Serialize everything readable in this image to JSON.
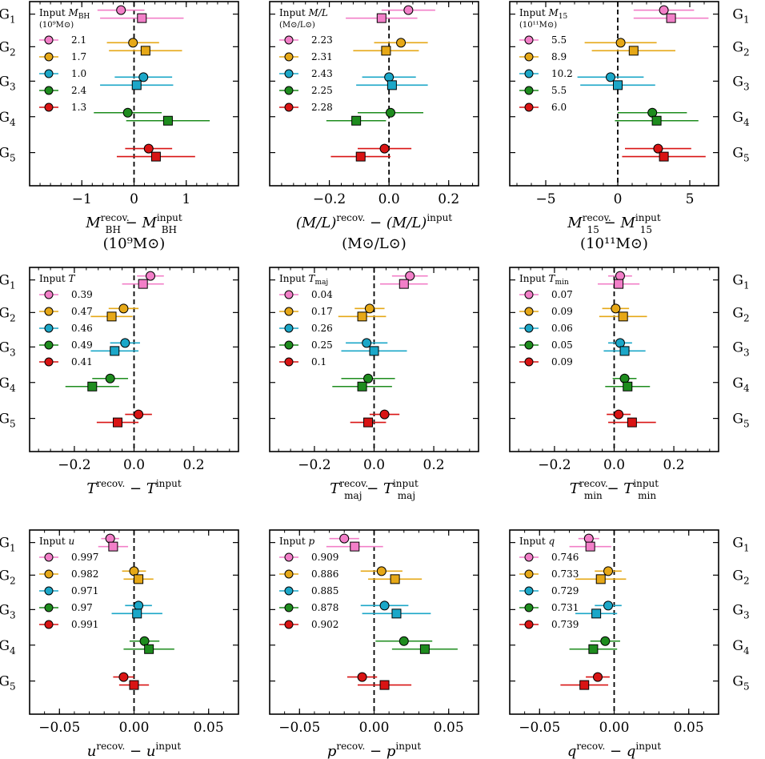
{
  "colors": {
    "G1": "#f27fc8",
    "G2": "#e6a817",
    "G3": "#1ba7c8",
    "G4": "#1e8c1e",
    "G5": "#d91414"
  },
  "group_labels": [
    "G",
    "G",
    "G",
    "G",
    "G"
  ],
  "group_subscripts": [
    "1",
    "2",
    "3",
    "4",
    "5"
  ],
  "chart_data": [
    {
      "type": "scatter",
      "id": "mbh",
      "xlim": [
        -2.0,
        2.0
      ],
      "xticks": [
        -1,
        0,
        1
      ],
      "xtick_labels": [
        "−1",
        "0",
        "1"
      ],
      "legend_title": "Input ",
      "legend_title_var": "M",
      "legend_title_sub": "BH",
      "legend_title_line2": "(10⁹M⊙)",
      "legend_values": [
        "2.1",
        "1.7",
        "1.0",
        "2.4",
        "1.3"
      ],
      "xlabel_line1": "M",
      "xlabel_line1_rest": "recov.",
      "xlabel_sub": "BH",
      "xlabel_minus": " − M",
      "xlabel_sup2": "input",
      "xlabel_sub2": "BH",
      "xlabel_line2": "(10⁹M⊙)",
      "ylabels_side": "left",
      "series": [
        {
          "name": "circle",
          "x": [
            -0.25,
            -0.02,
            0.18,
            -0.12,
            0.28
          ],
          "err": [
            0.45,
            0.5,
            0.55,
            0.65,
            0.45
          ]
        },
        {
          "name": "square",
          "x": [
            0.15,
            0.22,
            0.05,
            0.65,
            0.42
          ],
          "err": [
            0.8,
            0.7,
            0.7,
            0.8,
            0.75
          ]
        }
      ]
    },
    {
      "type": "scatter",
      "id": "ml",
      "xlim": [
        -0.4,
        0.3
      ],
      "xticks": [
        -0.2,
        0.0,
        0.2
      ],
      "xtick_labels": [
        "−0.2",
        "0.0",
        "0.2"
      ],
      "legend_title": "Input ",
      "legend_title_var": "M/L",
      "legend_title_line2": "(M⊙/L⊙)",
      "legend_values": [
        "2.23",
        "2.31",
        "2.43",
        "2.25",
        "2.28"
      ],
      "xlabel_line1": "(M/L)",
      "xlabel_line1_rest": "recov.",
      "xlabel_minus": " − (M/L)",
      "xlabel_sup2": "input",
      "xlabel_line2": "(M⊙/L⊙)",
      "series": [
        {
          "name": "circle",
          "x": [
            0.065,
            0.04,
            0.0,
            0.005,
            -0.015
          ],
          "err": [
            0.09,
            0.09,
            0.09,
            0.11,
            0.09
          ]
        },
        {
          "name": "square",
          "x": [
            -0.025,
            -0.01,
            0.01,
            -0.11,
            -0.095
          ],
          "err": [
            0.12,
            0.11,
            0.12,
            0.1,
            0.1
          ]
        }
      ]
    },
    {
      "type": "scatter",
      "id": "m15",
      "xlim": [
        -7.5,
        7.0
      ],
      "xticks": [
        -5,
        0,
        5
      ],
      "xtick_labels": [
        "−5",
        "0",
        "5"
      ],
      "legend_title": "Input ",
      "legend_title_var": "M",
      "legend_title_sub": "15",
      "legend_title_line2": "(10¹¹M⊙)",
      "legend_values": [
        "5.5",
        "8.9",
        "10.2",
        "5.5",
        "6.0"
      ],
      "xlabel_line1": "M",
      "xlabel_line1_rest": "recov.",
      "xlabel_sub": "15",
      "xlabel_minus": " − M",
      "xlabel_sup2": "input",
      "xlabel_sub2": "15",
      "xlabel_line2": "(10¹¹M⊙)",
      "ylabels_side": "right",
      "series": [
        {
          "name": "circle",
          "x": [
            3.2,
            0.2,
            -0.5,
            2.4,
            2.8
          ],
          "err": [
            2.1,
            2.5,
            2.3,
            2.4,
            2.3
          ]
        },
        {
          "name": "square",
          "x": [
            3.7,
            1.1,
            0.0,
            2.7,
            3.2
          ],
          "err": [
            2.6,
            2.9,
            2.6,
            2.9,
            2.9
          ]
        }
      ]
    },
    {
      "type": "scatter",
      "id": "t",
      "xlim": [
        -0.35,
        0.35
      ],
      "xticks": [
        -0.2,
        0.0,
        0.2
      ],
      "xtick_labels": [
        "−0.2",
        "0.0",
        "0.2"
      ],
      "legend_title": "Input ",
      "legend_title_var": "T",
      "legend_values": [
        "0.39",
        "0.47",
        "0.46",
        "0.49",
        "0.41"
      ],
      "xlabel_line1": "T",
      "xlabel_line1_rest": "recov.",
      "xlabel_minus": " − T",
      "xlabel_sup2": "input",
      "ylabels_side": "left",
      "series": [
        {
          "name": "circle",
          "x": [
            0.055,
            -0.035,
            -0.03,
            -0.08,
            0.015
          ],
          "err": [
            0.045,
            0.05,
            0.05,
            0.06,
            0.045
          ]
        },
        {
          "name": "square",
          "x": [
            0.03,
            -0.075,
            -0.065,
            -0.14,
            -0.055
          ],
          "err": [
            0.07,
            0.07,
            0.08,
            0.09,
            0.07
          ]
        }
      ]
    },
    {
      "type": "scatter",
      "id": "tmaj",
      "xlim": [
        -0.35,
        0.35
      ],
      "xticks": [
        -0.2,
        0.0,
        0.2
      ],
      "xtick_labels": [
        "−0.2",
        "0.0",
        "0.2"
      ],
      "legend_title": "Input ",
      "legend_title_var": "T",
      "legend_title_sub": "maj",
      "legend_values": [
        "0.04",
        "0.17",
        "0.26",
        "0.25",
        "0.1"
      ],
      "xlabel_line1": "T",
      "xlabel_line1_rest": "recov.",
      "xlabel_sub": "maj",
      "xlabel_minus": " − T",
      "xlabel_sup2": "input",
      "xlabel_sub2": "maj",
      "series": [
        {
          "name": "circle",
          "x": [
            0.12,
            -0.015,
            -0.025,
            -0.02,
            0.035
          ],
          "err": [
            0.06,
            0.05,
            0.07,
            0.09,
            0.05
          ]
        },
        {
          "name": "square",
          "x": [
            0.1,
            -0.04,
            0.0,
            -0.04,
            -0.02
          ],
          "err": [
            0.08,
            0.08,
            0.11,
            0.1,
            0.06
          ]
        }
      ]
    },
    {
      "type": "scatter",
      "id": "tmin",
      "xlim": [
        -0.35,
        0.35
      ],
      "xticks": [
        -0.2,
        0.0,
        0.2
      ],
      "xtick_labels": [
        "−0.2",
        "0.0",
        "0.2"
      ],
      "legend_title": "Input ",
      "legend_title_var": "T",
      "legend_title_sub": "min",
      "legend_values": [
        "0.07",
        "0.09",
        "0.06",
        "0.05",
        "0.09"
      ],
      "xlabel_line1": "T",
      "xlabel_line1_rest": "recov.",
      "xlabel_sub": "min",
      "xlabel_minus": " − T",
      "xlabel_sup2": "input",
      "xlabel_sub2": "min",
      "ylabels_side": "right",
      "series": [
        {
          "name": "circle",
          "x": [
            0.02,
            0.005,
            0.02,
            0.035,
            0.015
          ],
          "err": [
            0.04,
            0.045,
            0.04,
            0.04,
            0.04
          ]
        },
        {
          "name": "square",
          "x": [
            0.015,
            0.03,
            0.035,
            0.045,
            0.06
          ],
          "err": [
            0.07,
            0.08,
            0.07,
            0.075,
            0.08
          ]
        }
      ]
    },
    {
      "type": "scatter",
      "id": "u",
      "xlim": [
        -0.07,
        0.07
      ],
      "xticks": [
        -0.05,
        0.0,
        0.05
      ],
      "xtick_labels": [
        "−0.05",
        "0.00",
        "0.05"
      ],
      "legend_title": "Input ",
      "legend_title_var": "u",
      "legend_values": [
        "0.997",
        "0.982",
        "0.971",
        "0.97",
        "0.991"
      ],
      "xlabel_line1": "u",
      "xlabel_line1_rest": "recov.",
      "xlabel_minus": " − u",
      "xlabel_sup2": "input",
      "ylabels_side": "left",
      "series": [
        {
          "name": "circle",
          "x": [
            -0.016,
            0.0,
            0.003,
            0.007,
            -0.007
          ],
          "err": [
            0.006,
            0.008,
            0.009,
            0.01,
            0.007
          ]
        },
        {
          "name": "square",
          "x": [
            -0.014,
            0.003,
            0.002,
            0.01,
            0.0
          ],
          "err": [
            0.01,
            0.01,
            0.017,
            0.017,
            0.01
          ]
        }
      ]
    },
    {
      "type": "scatter",
      "id": "p",
      "xlim": [
        -0.07,
        0.07
      ],
      "xticks": [
        -0.05,
        0.0,
        0.05
      ],
      "xtick_labels": [
        "−0.05",
        "0.00",
        "0.05"
      ],
      "legend_title": "Input ",
      "legend_title_var": "p",
      "legend_values": [
        "0.909",
        "0.886",
        "0.885",
        "0.878",
        "0.902"
      ],
      "xlabel_line1": "p",
      "xlabel_line1_rest": "recov.",
      "xlabel_minus": " − p",
      "xlabel_sup2": "input",
      "series": [
        {
          "name": "circle",
          "x": [
            -0.02,
            0.005,
            0.007,
            0.02,
            -0.008
          ],
          "err": [
            0.01,
            0.014,
            0.016,
            0.019,
            0.01
          ]
        },
        {
          "name": "square",
          "x": [
            -0.013,
            0.014,
            0.015,
            0.034,
            0.007
          ],
          "err": [
            0.019,
            0.018,
            0.023,
            0.022,
            0.018
          ]
        }
      ]
    },
    {
      "type": "scatter",
      "id": "q",
      "xlim": [
        -0.07,
        0.07
      ],
      "xticks": [
        -0.05,
        0.0,
        0.05
      ],
      "xtick_labels": [
        "−0.05",
        "0.00",
        "0.05"
      ],
      "legend_title": "Input ",
      "legend_title_var": "q",
      "legend_values": [
        "0.746",
        "0.733",
        "0.729",
        "0.731",
        "0.739"
      ],
      "xlabel_line1": "q",
      "xlabel_line1_rest": "recov.",
      "xlabel_minus": " − q",
      "xlabel_sup2": "input",
      "ylabels_side": "right",
      "series": [
        {
          "name": "circle",
          "x": [
            -0.017,
            -0.004,
            -0.004,
            -0.006,
            -0.011
          ],
          "err": [
            0.007,
            0.009,
            0.009,
            0.01,
            0.008
          ]
        },
        {
          "name": "square",
          "x": [
            -0.016,
            -0.009,
            -0.012,
            -0.014,
            -0.02
          ],
          "err": [
            0.014,
            0.017,
            0.014,
            0.016,
            0.016
          ]
        }
      ]
    }
  ]
}
